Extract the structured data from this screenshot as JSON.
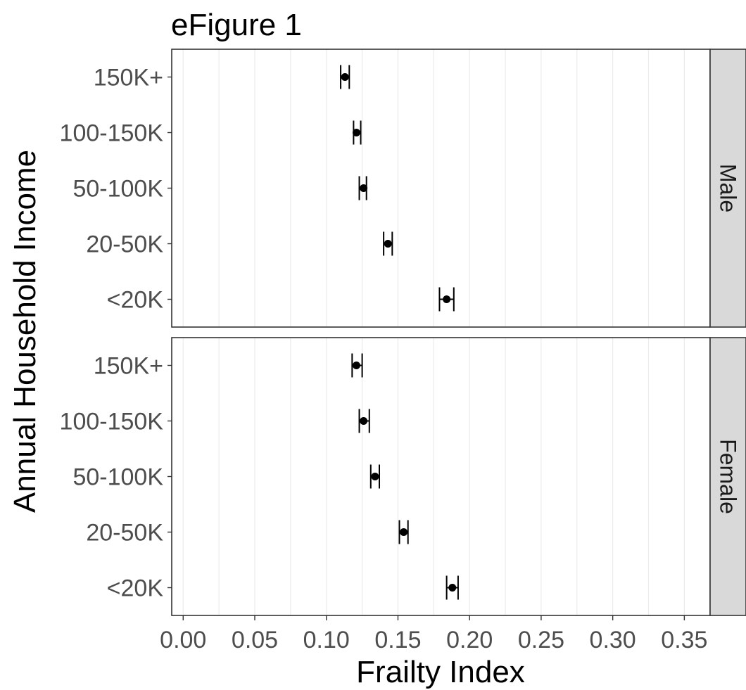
{
  "chart_data": {
    "type": "scatter",
    "title": "eFigure 1",
    "xlabel": "Frailty Index",
    "ylabel": "Annual Household Income",
    "xlim": [
      -0.008,
      0.368
    ],
    "x_ticks": [
      "0.00",
      "0.05",
      "0.10",
      "0.15",
      "0.20",
      "0.25",
      "0.30",
      "0.35"
    ],
    "categories": [
      "150K+",
      "100-150K",
      "50-100K",
      "20-50K",
      "<20K"
    ],
    "grid": true,
    "error_bars": true,
    "panels": [
      {
        "strip": "Male",
        "points": [
          {
            "category": "150K+",
            "value": 0.113,
            "lower": 0.11,
            "upper": 0.116
          },
          {
            "category": "100-150K",
            "value": 0.121,
            "lower": 0.119,
            "upper": 0.124
          },
          {
            "category": "50-100K",
            "value": 0.126,
            "lower": 0.123,
            "upper": 0.128
          },
          {
            "category": "20-50K",
            "value": 0.143,
            "lower": 0.14,
            "upper": 0.146
          },
          {
            "category": "<20K",
            "value": 0.184,
            "lower": 0.179,
            "upper": 0.189
          }
        ]
      },
      {
        "strip": "Female",
        "points": [
          {
            "category": "150K+",
            "value": 0.121,
            "lower": 0.118,
            "upper": 0.125
          },
          {
            "category": "100-150K",
            "value": 0.126,
            "lower": 0.123,
            "upper": 0.13
          },
          {
            "category": "50-100K",
            "value": 0.134,
            "lower": 0.131,
            "upper": 0.137
          },
          {
            "category": "20-50K",
            "value": 0.154,
            "lower": 0.151,
            "upper": 0.157
          },
          {
            "category": "<20K",
            "value": 0.188,
            "lower": 0.184,
            "upper": 0.192
          }
        ]
      }
    ]
  }
}
